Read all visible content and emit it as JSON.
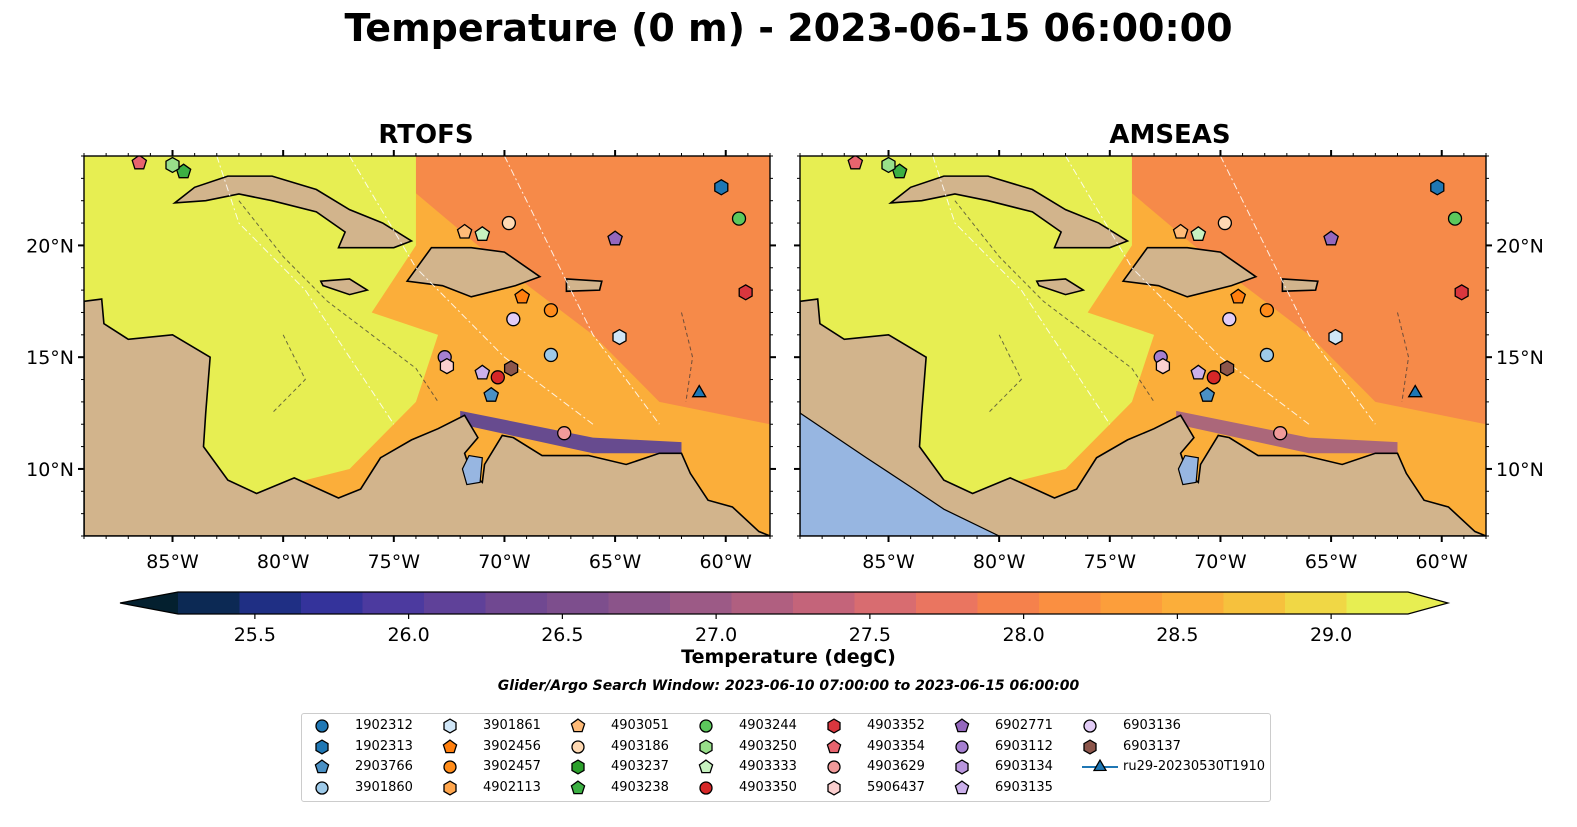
{
  "title": "Temperature (0 m) - 2023-06-15 06:00:00",
  "panels": [
    {
      "title": "RTOFS"
    },
    {
      "title": "AMSEAS"
    }
  ],
  "axes": {
    "lon_ticks": [
      "85°W",
      "80°W",
      "75°W",
      "70°W",
      "65°W",
      "60°W"
    ],
    "lat_ticks": [
      "20°N",
      "15°N",
      "10°N"
    ],
    "lon_range": [
      -89,
      -58
    ],
    "lat_range": [
      7,
      24
    ]
  },
  "colorbar": {
    "title": "Temperature (degC)",
    "tick_labels": [
      "25.5",
      "26.0",
      "26.5",
      "27.0",
      "27.5",
      "28.0",
      "28.5",
      "29.0"
    ],
    "range": [
      25.25,
      29.25
    ],
    "extend": "both",
    "colors": [
      "#04202f",
      "#0c2954",
      "#1f2f84",
      "#34339b",
      "#4c3a9f",
      "#5f4199",
      "#704891",
      "#7d4e8d",
      "#8b548a",
      "#9c5a86",
      "#b05f80",
      "#c4647a",
      "#d86c70",
      "#ea7560",
      "#f5814c",
      "#fa8f41",
      "#fc9e3b",
      "#fbae3a",
      "#f6c13d",
      "#f0d745",
      "#e7ee52"
    ]
  },
  "search_window": "Glider/Argo Search Window: 2023-06-10 07:00:00 to 2023-06-15 06:00:00",
  "legend": [
    {
      "label": "1902312",
      "marker": "circle",
      "color": "#1f77b4"
    },
    {
      "label": "1902313",
      "marker": "hexagon",
      "color": "#1f77b4"
    },
    {
      "label": "2903766",
      "marker": "pentagon",
      "color": "#4a90c4"
    },
    {
      "label": "3901860",
      "marker": "circle",
      "color": "#9ecae9"
    },
    {
      "label": "3901861",
      "marker": "hexagon",
      "color": "#d0e6f7"
    },
    {
      "label": "3902456",
      "marker": "pentagon",
      "color": "#ff7f0e"
    },
    {
      "label": "3902457",
      "marker": "circle",
      "color": "#ff8c1a"
    },
    {
      "label": "4902113",
      "marker": "hexagon",
      "color": "#ffa64d"
    },
    {
      "label": "4903051",
      "marker": "pentagon",
      "color": "#ffbb78"
    },
    {
      "label": "4903186",
      "marker": "circle",
      "color": "#ffd9b3"
    },
    {
      "label": "4903237",
      "marker": "hexagon",
      "color": "#2ca02c"
    },
    {
      "label": "4903238",
      "marker": "pentagon",
      "color": "#3cb043"
    },
    {
      "label": "4903244",
      "marker": "circle",
      "color": "#5cc85c"
    },
    {
      "label": "4903250",
      "marker": "hexagon",
      "color": "#98df8a"
    },
    {
      "label": "4903333",
      "marker": "pentagon",
      "color": "#c7f2c0"
    },
    {
      "label": "4903350",
      "marker": "circle",
      "color": "#d62728"
    },
    {
      "label": "4903352",
      "marker": "hexagon",
      "color": "#d9363e"
    },
    {
      "label": "4903354",
      "marker": "pentagon",
      "color": "#e7646e"
    },
    {
      "label": "4903629",
      "marker": "circle",
      "color": "#f09a9a"
    },
    {
      "label": "5906437",
      "marker": "hexagon",
      "color": "#fbcfcf"
    },
    {
      "label": "6902771",
      "marker": "pentagon",
      "color": "#9467bd"
    },
    {
      "label": "6903112",
      "marker": "circle",
      "color": "#a57fd0"
    },
    {
      "label": "6903134",
      "marker": "hexagon",
      "color": "#b996dd"
    },
    {
      "label": "6903135",
      "marker": "pentagon",
      "color": "#cbb0eb"
    },
    {
      "label": "6903136",
      "marker": "circle",
      "color": "#e2ccf6"
    },
    {
      "label": "6903137",
      "marker": "hexagon",
      "color": "#8c564b"
    },
    {
      "label": "ru29-20230530T1910",
      "marker": "triangle-line",
      "color": "#1f77b4"
    }
  ],
  "floats": [
    {
      "label": "1902313",
      "lon": -60.2,
      "lat": 22.6
    },
    {
      "label": "4903244",
      "lon": -59.4,
      "lat": 21.2
    },
    {
      "label": "4903352",
      "lon": -59.1,
      "lat": 17.9
    },
    {
      "label": "6902771",
      "lon": -65.0,
      "lat": 20.3
    },
    {
      "label": "3901861",
      "lon": -64.8,
      "lat": 15.9
    },
    {
      "label": "3901860",
      "lon": -67.9,
      "lat": 15.1
    },
    {
      "label": "3902457",
      "lon": -67.9,
      "lat": 17.1
    },
    {
      "label": "3902456",
      "lon": -69.2,
      "lat": 17.7
    },
    {
      "label": "6903136",
      "lon": -69.6,
      "lat": 16.7
    },
    {
      "label": "4903350",
      "lon": -70.3,
      "lat": 14.1
    },
    {
      "label": "6903137",
      "lon": -69.7,
      "lat": 14.5
    },
    {
      "label": "6903135",
      "lon": -71.0,
      "lat": 14.3
    },
    {
      "label": "2903766",
      "lon": -70.6,
      "lat": 13.3
    },
    {
      "label": "6903112",
      "lon": -72.7,
      "lat": 15.0
    },
    {
      "label": "5906437",
      "lon": -72.6,
      "lat": 14.6
    },
    {
      "label": "4903629",
      "lon": -67.3,
      "lat": 11.6
    },
    {
      "label": "4903051",
      "lon": -71.8,
      "lat": 20.6
    },
    {
      "label": "4903333",
      "lon": -71.0,
      "lat": 20.5
    },
    {
      "label": "4903186",
      "lon": -69.8,
      "lat": 21.0
    },
    {
      "label": "4903238",
      "lon": -84.5,
      "lat": 23.3
    },
    {
      "label": "4903250",
      "lon": -85.0,
      "lat": 23.6
    },
    {
      "label": "4903354",
      "lon": -86.5,
      "lat": 23.7
    },
    {
      "label": "ru29-20230530T1910",
      "lon": -61.2,
      "lat": 13.4
    }
  ]
}
